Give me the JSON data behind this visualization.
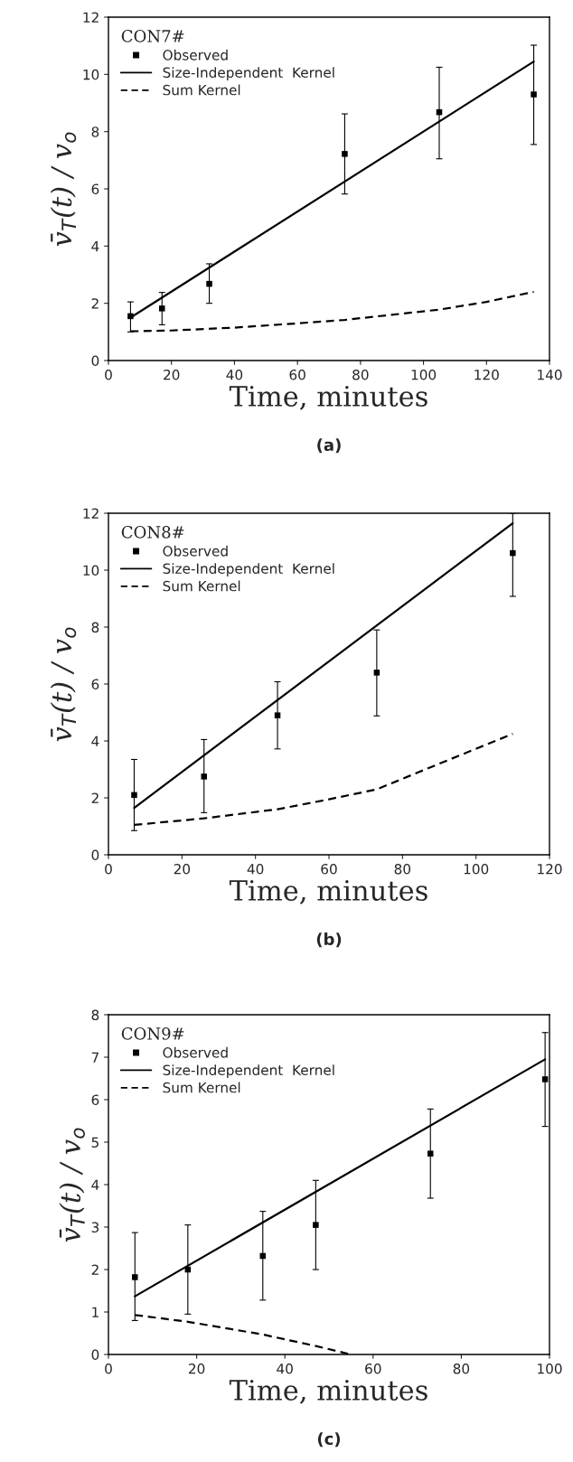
{
  "chart_data": [
    {
      "type": "line",
      "legend_title": "CON7#",
      "xlabel": "Time, minutes",
      "ylabel": "v̄$_{T}$(t) / v$_{o}$",
      "annotations": [
        "(a)"
      ],
      "xlim": [
        0,
        140
      ],
      "ylim": [
        0,
        12
      ],
      "xticks": [
        0,
        20,
        40,
        60,
        80,
        100,
        120,
        140
      ],
      "yticks": [
        0,
        2,
        4,
        6,
        8,
        10,
        12
      ],
      "legend": "top left",
      "grid": false,
      "series": [
        {
          "name": "Observed",
          "type": "scatter",
          "marker": "square",
          "color": "#000000",
          "x": [
            7,
            17,
            32,
            75,
            105,
            135
          ],
          "values": [
            1.55,
            1.82,
            2.68,
            7.22,
            8.68,
            9.3
          ],
          "errors": [
            [
              1.0,
              2.05
            ],
            [
              1.25,
              2.38
            ],
            [
              2.0,
              3.38
            ],
            [
              5.82,
              8.62
            ],
            [
              7.05,
              10.25
            ],
            [
              7.55,
              11.02
            ]
          ]
        },
        {
          "name": "Size-Independent  Kernel",
          "line_style": "solid",
          "color": "#000000",
          "x": [
            7,
            135
          ],
          "values": [
            1.5,
            10.45
          ]
        },
        {
          "name": "Sum Kernel",
          "line_style": "dashed",
          "color": "#000000",
          "x": [
            7,
            20,
            40,
            60,
            75,
            90,
            105,
            120,
            135
          ],
          "values": [
            1.02,
            1.05,
            1.15,
            1.3,
            1.42,
            1.6,
            1.78,
            2.05,
            2.4
          ]
        }
      ]
    },
    {
      "type": "line",
      "legend_title": "CON8#",
      "xlabel": "Time, minutes",
      "ylabel": "v̄$_{T}$(t) / v$_{o}$",
      "annotations": [
        "(b)"
      ],
      "xlim": [
        0,
        120
      ],
      "ylim": [
        0,
        12
      ],
      "xticks": [
        0,
        20,
        40,
        60,
        80,
        100,
        120
      ],
      "yticks": [
        0,
        2,
        4,
        6,
        8,
        10,
        12
      ],
      "legend": "top left",
      "grid": false,
      "series": [
        {
          "name": "Observed",
          "type": "scatter",
          "marker": "square",
          "color": "#000000",
          "x": [
            7,
            26,
            46,
            73,
            110
          ],
          "values": [
            2.1,
            2.75,
            4.9,
            6.4,
            10.6
          ],
          "errors": [
            [
              0.85,
              3.35
            ],
            [
              1.48,
              4.05
            ],
            [
              3.72,
              6.08
            ],
            [
              4.88,
              7.9
            ],
            [
              9.08,
              12.0
            ]
          ]
        },
        {
          "name": "Size-Independent  Kernel",
          "line_style": "solid",
          "color": "#000000",
          "x": [
            7,
            110
          ],
          "values": [
            1.65,
            11.65
          ]
        },
        {
          "name": "Sum Kernel",
          "line_style": "dashed",
          "color": "#000000",
          "x": [
            7,
            26,
            46,
            60,
            73,
            90,
            110
          ],
          "values": [
            1.05,
            1.28,
            1.6,
            1.95,
            2.3,
            3.2,
            4.25
          ]
        }
      ]
    },
    {
      "type": "line",
      "legend_title": "CON9#",
      "xlabel": "Time, minutes",
      "ylabel": "v̄$_{T}$(t) / v$_{o}$",
      "annotations": [
        "(c)"
      ],
      "xlim": [
        0,
        100
      ],
      "ylim": [
        0,
        8
      ],
      "xticks": [
        0,
        20,
        40,
        60,
        80,
        100
      ],
      "yticks": [
        0,
        1,
        2,
        3,
        4,
        5,
        6,
        7,
        8
      ],
      "legend": "top left",
      "grid": false,
      "series": [
        {
          "name": "Observed",
          "type": "scatter",
          "marker": "square",
          "color": "#000000",
          "x": [
            6,
            18,
            35,
            47,
            73,
            99
          ],
          "values": [
            1.82,
            2.0,
            2.32,
            3.05,
            4.73,
            6.48
          ],
          "errors": [
            [
              0.8,
              2.87
            ],
            [
              0.95,
              3.05
            ],
            [
              1.28,
              3.37
            ],
            [
              2.0,
              4.1
            ],
            [
              3.68,
              5.78
            ],
            [
              5.37,
              7.58
            ]
          ]
        },
        {
          "name": "Size-Independent  Kernel",
          "line_style": "solid",
          "color": "#000000",
          "x": [
            6,
            99
          ],
          "values": [
            1.37,
            6.95
          ]
        },
        {
          "name": "Sum Kernel",
          "line_style": "dashed",
          "color": "#000000",
          "x": [
            6,
            18,
            35,
            47,
            55
          ],
          "values": [
            0.93,
            0.77,
            0.47,
            0.2,
            0.0
          ]
        }
      ]
    }
  ]
}
